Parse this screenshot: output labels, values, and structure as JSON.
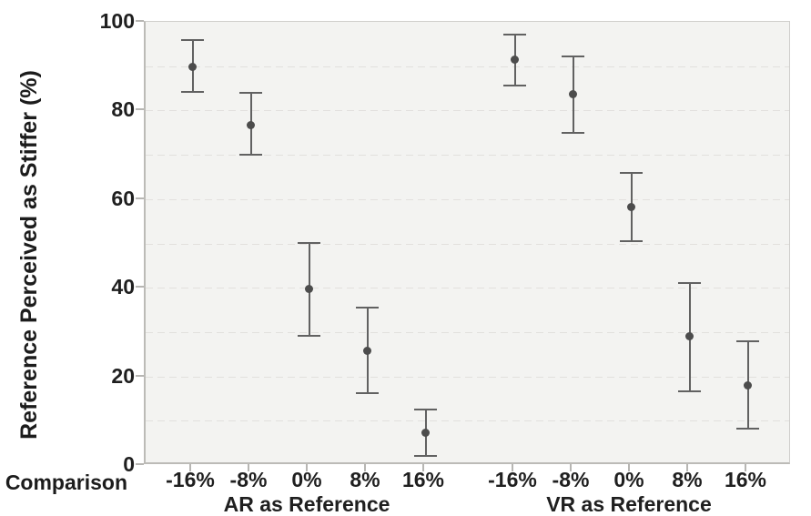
{
  "chart_data": {
    "type": "scatter",
    "subtype": "point-estimates-with-error-bars",
    "title": "",
    "ylabel": "Reference Perceived as Stiffer (%)",
    "xlabel": "Comparison",
    "ylim": [
      0,
      100
    ],
    "y_major_ticks": [
      0,
      20,
      40,
      60,
      80,
      100
    ],
    "y_major_tick_labels": [
      "0",
      "20",
      "40",
      "60",
      "80",
      "100"
    ],
    "grid": "dashed horizontal gridlines every 10 units",
    "grid_step": 10,
    "legend": "none",
    "categories": [
      "-16%",
      "-8%",
      "0%",
      "8%",
      "16%"
    ],
    "groups": [
      {
        "name": "AR as Reference",
        "points": [
          {
            "category": "-16%",
            "mean": 90.0,
            "ci_low": 84.0,
            "ci_high": 96.2
          },
          {
            "category": "-8%",
            "mean": 76.7,
            "ci_low": 69.8,
            "ci_high": 84.2
          },
          {
            "category": "0%",
            "mean": 39.7,
            "ci_low": 29.0,
            "ci_high": 50.3
          },
          {
            "category": "8%",
            "mean": 25.8,
            "ci_low": 16.0,
            "ci_high": 35.7
          },
          {
            "category": "16%",
            "mean": 7.2,
            "ci_low": 1.8,
            "ci_high": 12.7
          }
        ]
      },
      {
        "name": "VR as Reference",
        "points": [
          {
            "category": "-16%",
            "mean": 91.5,
            "ci_low": 85.4,
            "ci_high": 97.4
          },
          {
            "category": "-8%",
            "mean": 83.8,
            "ci_low": 74.9,
            "ci_high": 92.5
          },
          {
            "category": "0%",
            "mean": 58.1,
            "ci_low": 50.2,
            "ci_high": 66.1
          },
          {
            "category": "8%",
            "mean": 29.0,
            "ci_low": 16.4,
            "ci_high": 41.2
          },
          {
            "category": "16%",
            "mean": 18.0,
            "ci_low": 8.0,
            "ci_high": 28.2
          }
        ]
      }
    ],
    "colors": {
      "marker": "#4c4c4c",
      "error_bar": "#616161",
      "panel_background": "#f3f3f1",
      "gridline": "#e2e0dd",
      "axis_border": "#bcbbb7",
      "text": "#1f1f1f",
      "page_background": "#ffffff"
    }
  }
}
